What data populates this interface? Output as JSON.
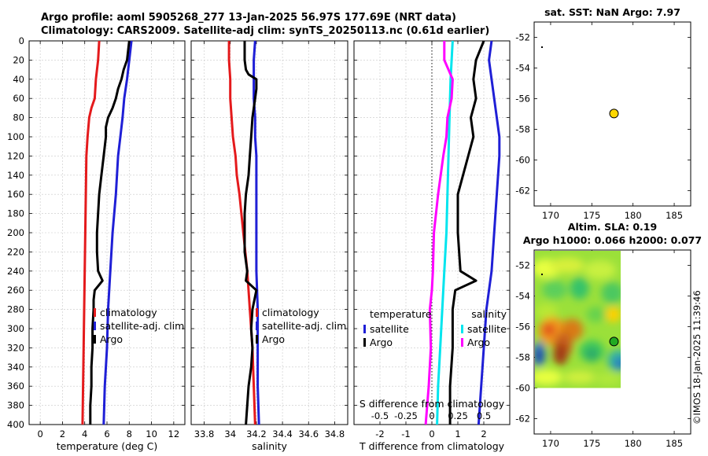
{
  "figure": {
    "title_line1": "Argo profile: aoml 5905268_277 13-Jan-2025 56.97S 177.69E (NRT data)",
    "title_line2": "Climatology: CARS2009. Satellite-adj clim: synTS_20250113.nc (0.61d earlier)",
    "watermark": "©IMOS 18-Jan-2025 11:39:46"
  },
  "chart_data": [
    {
      "type": "line",
      "id": "temperature",
      "xlabel": "temperature (deg C)",
      "ylabel": "",
      "xlim": [
        -1,
        13
      ],
      "ylim": [
        400,
        0
      ],
      "xticks": [
        "0",
        "2",
        "4",
        "6",
        "8",
        "10",
        "12"
      ],
      "yticks": [
        "0",
        "20",
        "40",
        "60",
        "80",
        "100",
        "120",
        "140",
        "160",
        "180",
        "200",
        "220",
        "240",
        "260",
        "280",
        "300",
        "320",
        "340",
        "360",
        "380",
        "400"
      ],
      "grid": true,
      "legend": [
        "climatology",
        "satellite-adj. clim",
        "Argo"
      ],
      "series": [
        {
          "name": "climatology",
          "color": "#e41a1c",
          "depth": [
            0,
            20,
            40,
            60,
            70,
            80,
            100,
            120,
            160,
            200,
            240,
            280,
            320,
            360,
            400
          ],
          "values": [
            5.3,
            5.2,
            5.0,
            4.9,
            4.6,
            4.4,
            4.25,
            4.15,
            4.1,
            4.05,
            4.0,
            3.95,
            3.9,
            3.85,
            3.8
          ]
        },
        {
          "name": "satellite-adj. clim",
          "color": "#1f1fd6",
          "depth": [
            0,
            20,
            40,
            60,
            80,
            100,
            120,
            160,
            200,
            240,
            280,
            320,
            360,
            400
          ],
          "values": [
            8.2,
            8.0,
            7.8,
            7.55,
            7.4,
            7.2,
            7.0,
            6.8,
            6.5,
            6.3,
            6.1,
            6.0,
            5.8,
            5.7
          ]
        },
        {
          "name": "Argo",
          "color": "#000000",
          "depth": [
            0,
            10,
            20,
            30,
            40,
            50,
            60,
            70,
            80,
            90,
            100,
            120,
            140,
            160,
            180,
            200,
            220,
            240,
            250,
            260,
            270,
            280,
            300,
            320,
            340,
            360,
            380,
            400
          ],
          "values": [
            8.0,
            7.9,
            7.8,
            7.5,
            7.3,
            7.0,
            6.8,
            6.5,
            6.1,
            5.9,
            5.9,
            5.7,
            5.5,
            5.3,
            5.2,
            5.1,
            5.1,
            5.2,
            5.6,
            4.9,
            4.8,
            4.8,
            4.7,
            4.7,
            4.6,
            4.6,
            4.5,
            4.5
          ]
        }
      ]
    },
    {
      "type": "line",
      "id": "salinity",
      "xlabel": "salinity",
      "xlim": [
        33.7,
        34.9
      ],
      "ylim": [
        400,
        0
      ],
      "xticks": [
        "33.8",
        "34",
        "34.2",
        "34.4",
        "34.6",
        "34.8"
      ],
      "grid": true,
      "legend": [
        "climatology",
        "satellite-adj. clim",
        "Argo"
      ],
      "series": [
        {
          "name": "climatology",
          "color": "#e41a1c",
          "depth": [
            0,
            20,
            40,
            60,
            80,
            100,
            120,
            140,
            160,
            200,
            240,
            280,
            320,
            360,
            400
          ],
          "values": [
            33.99,
            33.99,
            34.0,
            34.0,
            34.01,
            34.02,
            34.04,
            34.05,
            34.07,
            34.1,
            34.13,
            34.15,
            34.17,
            34.18,
            34.19
          ]
        },
        {
          "name": "satellite-adj. clim",
          "color": "#1f1fd6",
          "depth": [
            0,
            20,
            40,
            60,
            80,
            100,
            120,
            160,
            200,
            240,
            280,
            320,
            360,
            400
          ],
          "values": [
            34.19,
            34.18,
            34.18,
            34.18,
            34.19,
            34.19,
            34.2,
            34.2,
            34.2,
            34.2,
            34.21,
            34.21,
            34.21,
            34.22
          ]
        },
        {
          "name": "Argo",
          "color": "#000000",
          "depth": [
            0,
            10,
            20,
            30,
            35,
            40,
            50,
            60,
            70,
            80,
            100,
            120,
            140,
            160,
            180,
            200,
            220,
            240,
            250,
            260,
            280,
            300,
            320,
            340,
            360,
            380,
            400
          ],
          "values": [
            34.11,
            34.11,
            34.11,
            34.12,
            34.14,
            34.2,
            34.2,
            34.19,
            34.18,
            34.17,
            34.16,
            34.15,
            34.14,
            34.12,
            34.11,
            34.11,
            34.11,
            34.13,
            34.12,
            34.2,
            34.17,
            34.16,
            34.17,
            34.16,
            34.14,
            34.13,
            34.12
          ]
        }
      ]
    },
    {
      "type": "line",
      "id": "difference",
      "xlabel": "T difference from climatology",
      "top_label": "S difference from climatology",
      "xlim": [
        -3,
        3
      ],
      "ylim": [
        400,
        0
      ],
      "xticks": [
        "-2",
        "-1",
        "0",
        "1",
        "2"
      ],
      "top_ticks": [
        "-0.5",
        "-0.25",
        "0",
        "0.25",
        "0.5"
      ],
      "grid": true,
      "legend_left_title": "temperature",
      "legend_right_title": "salinity",
      "legend_left": [
        "satellite",
        "Argo"
      ],
      "legend_right": [
        "satellite",
        "Argo"
      ],
      "series": [
        {
          "name": "temperature satellite",
          "color": "#1f1fd6",
          "axis": "T",
          "depth": [
            0,
            20,
            40,
            60,
            80,
            100,
            120,
            160,
            200,
            240,
            280,
            320,
            360,
            400
          ],
          "values": [
            2.3,
            2.2,
            2.3,
            2.4,
            2.5,
            2.6,
            2.6,
            2.5,
            2.4,
            2.3,
            2.1,
            2.0,
            1.9,
            1.8
          ]
        },
        {
          "name": "temperature Argo",
          "color": "#000000",
          "axis": "T",
          "depth": [
            0,
            20,
            40,
            60,
            80,
            100,
            120,
            160,
            200,
            240,
            250,
            260,
            280,
            320,
            360,
            400
          ],
          "values": [
            2.0,
            1.7,
            1.6,
            1.7,
            1.5,
            1.6,
            1.4,
            1.0,
            1.0,
            1.1,
            1.7,
            0.9,
            0.8,
            0.8,
            0.7,
            0.7
          ]
        },
        {
          "name": "salinity satellite",
          "color": "#00e5ee",
          "axis": "S",
          "depth": [
            0,
            40,
            80,
            120,
            160,
            200,
            240,
            280,
            320,
            360,
            400
          ],
          "values": [
            0.2,
            0.18,
            0.17,
            0.16,
            0.15,
            0.14,
            0.12,
            0.1,
            0.08,
            0.06,
            0.05
          ]
        },
        {
          "name": "salinity Argo",
          "color": "#ff00ff",
          "axis": "S",
          "depth": [
            0,
            20,
            40,
            60,
            80,
            100,
            120,
            160,
            200,
            240,
            260,
            280,
            320,
            360,
            400
          ],
          "values": [
            0.12,
            0.12,
            0.2,
            0.19,
            0.15,
            0.14,
            0.11,
            0.06,
            0.02,
            0.01,
            0.0,
            -0.02,
            -0.01,
            -0.03,
            -0.06
          ]
        }
      ]
    },
    {
      "type": "scatter",
      "id": "sst_map",
      "title": "sat. SST: NaN Argo: 7.97",
      "xlim": [
        168,
        187
      ],
      "ylim": [
        -63,
        -51
      ],
      "xticks": [
        "170",
        "175",
        "180",
        "185"
      ],
      "yticks": [
        "-52",
        "-54",
        "-56",
        "-58",
        "-60",
        "-62"
      ],
      "points": [
        {
          "x": 177.69,
          "y": -56.97,
          "color": "#ffd700"
        }
      ]
    },
    {
      "type": "heatmap",
      "id": "sla_map",
      "title_line1": "Altim. SLA: 0.19",
      "title_line2": "Argo h1000: 0.066 h2000: 0.077",
      "xlim": [
        168,
        187
      ],
      "ylim": [
        -63,
        -51
      ],
      "data_extent_x": [
        168,
        178.5
      ],
      "data_extent_y": [
        -60,
        -51
      ],
      "xticks": [
        "170",
        "175",
        "180",
        "185"
      ],
      "yticks": [
        "-52",
        "-54",
        "-56",
        "-58",
        "-60",
        "-62"
      ],
      "points": [
        {
          "x": 177.69,
          "y": -56.97,
          "color": "#22aa22"
        }
      ]
    }
  ]
}
